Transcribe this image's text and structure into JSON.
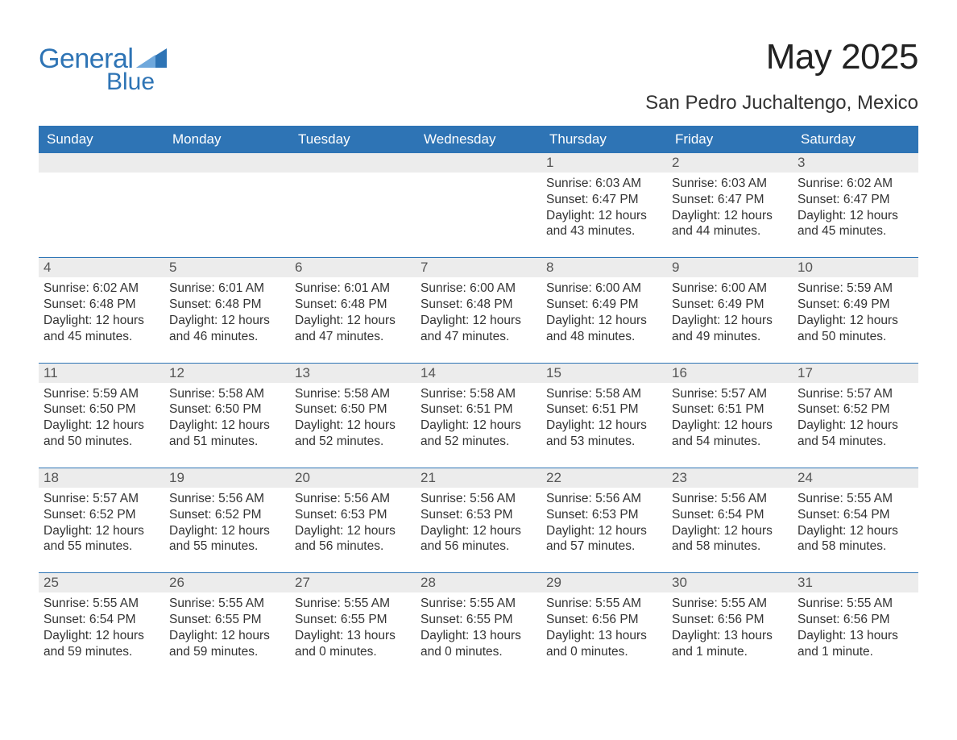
{
  "brand": {
    "general": "General",
    "blue": "Blue"
  },
  "title": "May 2025",
  "location": "San Pedro Juchaltengo, Mexico",
  "colors": {
    "brand_blue": "#2e74b5",
    "header_bg": "#2e74b5",
    "header_fg": "#ffffff",
    "daybar_bg": "#ececec",
    "rule": "#2e74b5",
    "text": "#333333",
    "background": "#ffffff"
  },
  "typography": {
    "title_fontsize": 44,
    "location_fontsize": 24,
    "dow_fontsize": 17,
    "daynum_fontsize": 17,
    "body_fontsize": 15.5,
    "font_family": "Arial"
  },
  "dow": [
    "Sunday",
    "Monday",
    "Tuesday",
    "Wednesday",
    "Thursday",
    "Friday",
    "Saturday"
  ],
  "labels": {
    "sunrise": "Sunrise: ",
    "sunset": "Sunset: ",
    "daylight": "Daylight: "
  },
  "weeks": [
    [
      null,
      null,
      null,
      null,
      {
        "d": "1",
        "sr": "6:03 AM",
        "ss": "6:47 PM",
        "dl": "12 hours and 43 minutes."
      },
      {
        "d": "2",
        "sr": "6:03 AM",
        "ss": "6:47 PM",
        "dl": "12 hours and 44 minutes."
      },
      {
        "d": "3",
        "sr": "6:02 AM",
        "ss": "6:47 PM",
        "dl": "12 hours and 45 minutes."
      }
    ],
    [
      {
        "d": "4",
        "sr": "6:02 AM",
        "ss": "6:48 PM",
        "dl": "12 hours and 45 minutes."
      },
      {
        "d": "5",
        "sr": "6:01 AM",
        "ss": "6:48 PM",
        "dl": "12 hours and 46 minutes."
      },
      {
        "d": "6",
        "sr": "6:01 AM",
        "ss": "6:48 PM",
        "dl": "12 hours and 47 minutes."
      },
      {
        "d": "7",
        "sr": "6:00 AM",
        "ss": "6:48 PM",
        "dl": "12 hours and 47 minutes."
      },
      {
        "d": "8",
        "sr": "6:00 AM",
        "ss": "6:49 PM",
        "dl": "12 hours and 48 minutes."
      },
      {
        "d": "9",
        "sr": "6:00 AM",
        "ss": "6:49 PM",
        "dl": "12 hours and 49 minutes."
      },
      {
        "d": "10",
        "sr": "5:59 AM",
        "ss": "6:49 PM",
        "dl": "12 hours and 50 minutes."
      }
    ],
    [
      {
        "d": "11",
        "sr": "5:59 AM",
        "ss": "6:50 PM",
        "dl": "12 hours and 50 minutes."
      },
      {
        "d": "12",
        "sr": "5:58 AM",
        "ss": "6:50 PM",
        "dl": "12 hours and 51 minutes."
      },
      {
        "d": "13",
        "sr": "5:58 AM",
        "ss": "6:50 PM",
        "dl": "12 hours and 52 minutes."
      },
      {
        "d": "14",
        "sr": "5:58 AM",
        "ss": "6:51 PM",
        "dl": "12 hours and 52 minutes."
      },
      {
        "d": "15",
        "sr": "5:58 AM",
        "ss": "6:51 PM",
        "dl": "12 hours and 53 minutes."
      },
      {
        "d": "16",
        "sr": "5:57 AM",
        "ss": "6:51 PM",
        "dl": "12 hours and 54 minutes."
      },
      {
        "d": "17",
        "sr": "5:57 AM",
        "ss": "6:52 PM",
        "dl": "12 hours and 54 minutes."
      }
    ],
    [
      {
        "d": "18",
        "sr": "5:57 AM",
        "ss": "6:52 PM",
        "dl": "12 hours and 55 minutes."
      },
      {
        "d": "19",
        "sr": "5:56 AM",
        "ss": "6:52 PM",
        "dl": "12 hours and 55 minutes."
      },
      {
        "d": "20",
        "sr": "5:56 AM",
        "ss": "6:53 PM",
        "dl": "12 hours and 56 minutes."
      },
      {
        "d": "21",
        "sr": "5:56 AM",
        "ss": "6:53 PM",
        "dl": "12 hours and 56 minutes."
      },
      {
        "d": "22",
        "sr": "5:56 AM",
        "ss": "6:53 PM",
        "dl": "12 hours and 57 minutes."
      },
      {
        "d": "23",
        "sr": "5:56 AM",
        "ss": "6:54 PM",
        "dl": "12 hours and 58 minutes."
      },
      {
        "d": "24",
        "sr": "5:55 AM",
        "ss": "6:54 PM",
        "dl": "12 hours and 58 minutes."
      }
    ],
    [
      {
        "d": "25",
        "sr": "5:55 AM",
        "ss": "6:54 PM",
        "dl": "12 hours and 59 minutes."
      },
      {
        "d": "26",
        "sr": "5:55 AM",
        "ss": "6:55 PM",
        "dl": "12 hours and 59 minutes."
      },
      {
        "d": "27",
        "sr": "5:55 AM",
        "ss": "6:55 PM",
        "dl": "13 hours and 0 minutes."
      },
      {
        "d": "28",
        "sr": "5:55 AM",
        "ss": "6:55 PM",
        "dl": "13 hours and 0 minutes."
      },
      {
        "d": "29",
        "sr": "5:55 AM",
        "ss": "6:56 PM",
        "dl": "13 hours and 0 minutes."
      },
      {
        "d": "30",
        "sr": "5:55 AM",
        "ss": "6:56 PM",
        "dl": "13 hours and 1 minute."
      },
      {
        "d": "31",
        "sr": "5:55 AM",
        "ss": "6:56 PM",
        "dl": "13 hours and 1 minute."
      }
    ]
  ]
}
